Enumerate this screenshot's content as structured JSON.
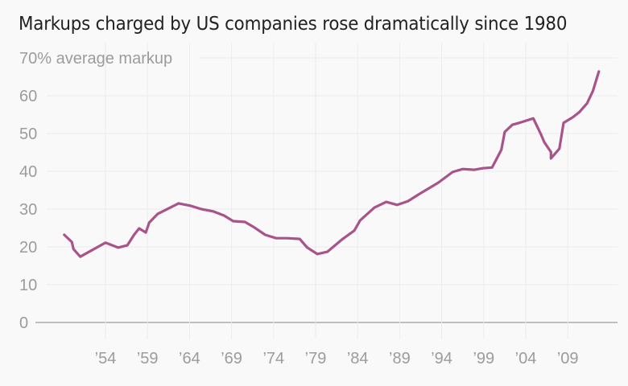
{
  "chart_data": {
    "type": "line",
    "title": "Markups charged by US companies rose dramatically since 1980",
    "xlabel": "",
    "ylabel": "average markup",
    "top_tick_label": "70% average markup",
    "ylim": [
      0,
      70
    ],
    "yticks": [
      0,
      10,
      20,
      30,
      40,
      50,
      60,
      70
    ],
    "ytick_labels": [
      "0",
      "10",
      "20",
      "30",
      "40",
      "50",
      "60",
      "70% average markup"
    ],
    "xlim": [
      1949,
      2015
    ],
    "xticks": [
      1954,
      1959,
      1964,
      1969,
      1974,
      1979,
      1984,
      1989,
      1994,
      1999,
      2004,
      2009
    ],
    "xtick_labels": [
      "’54",
      "’59",
      "’64",
      "’69",
      "’74",
      "’79",
      "’84",
      "’89",
      "’94",
      "’99",
      "’04",
      "’09"
    ],
    "grid": true,
    "legend": "none",
    "series": [
      {
        "name": "Average markup (%)",
        "color": "#a8548a",
        "x": [
          1949.1,
          1950.0,
          1950.2,
          1951.0,
          1954.0,
          1955.5,
          1956.6,
          1957.4,
          1958.0,
          1958.8,
          1959.2,
          1960.2,
          1962.7,
          1964.1,
          1965.4,
          1966.8,
          1968.1,
          1969.2,
          1970.6,
          1971.6,
          1973.0,
          1974.3,
          1975.6,
          1977.1,
          1978.0,
          1979.2,
          1980.4,
          1982.1,
          1983.6,
          1984.3,
          1986.0,
          1987.4,
          1988.7,
          1990.0,
          1991.2,
          1993.6,
          1995.3,
          1996.5,
          1997.9,
          1998.9,
          2000.0,
          2001.1,
          2001.5,
          2002.4,
          2003.5,
          2004.9,
          2005.8,
          2006.2,
          2007.0,
          2007.0,
          2008.0,
          2008.5,
          2009.6,
          2010.4,
          2011.3,
          2012.0,
          2012.7
        ],
        "values": [
          23.2,
          21.3,
          19.4,
          17.4,
          21.1,
          19.8,
          20.4,
          23.2,
          24.9,
          23.8,
          26.4,
          28.7,
          31.5,
          30.9,
          30.0,
          29.4,
          28.3,
          26.8,
          26.6,
          25.3,
          23.2,
          22.3,
          22.3,
          22.1,
          19.8,
          18.1,
          18.7,
          21.9,
          24.3,
          27.0,
          30.4,
          31.9,
          31.1,
          32.1,
          33.8,
          37.0,
          39.8,
          40.6,
          40.4,
          40.8,
          41.0,
          45.7,
          50.4,
          52.3,
          53.0,
          54.0,
          49.8,
          47.7,
          45.1,
          43.4,
          46.0,
          52.8,
          54.3,
          55.7,
          58.0,
          61.3,
          66.4
        ]
      }
    ]
  }
}
